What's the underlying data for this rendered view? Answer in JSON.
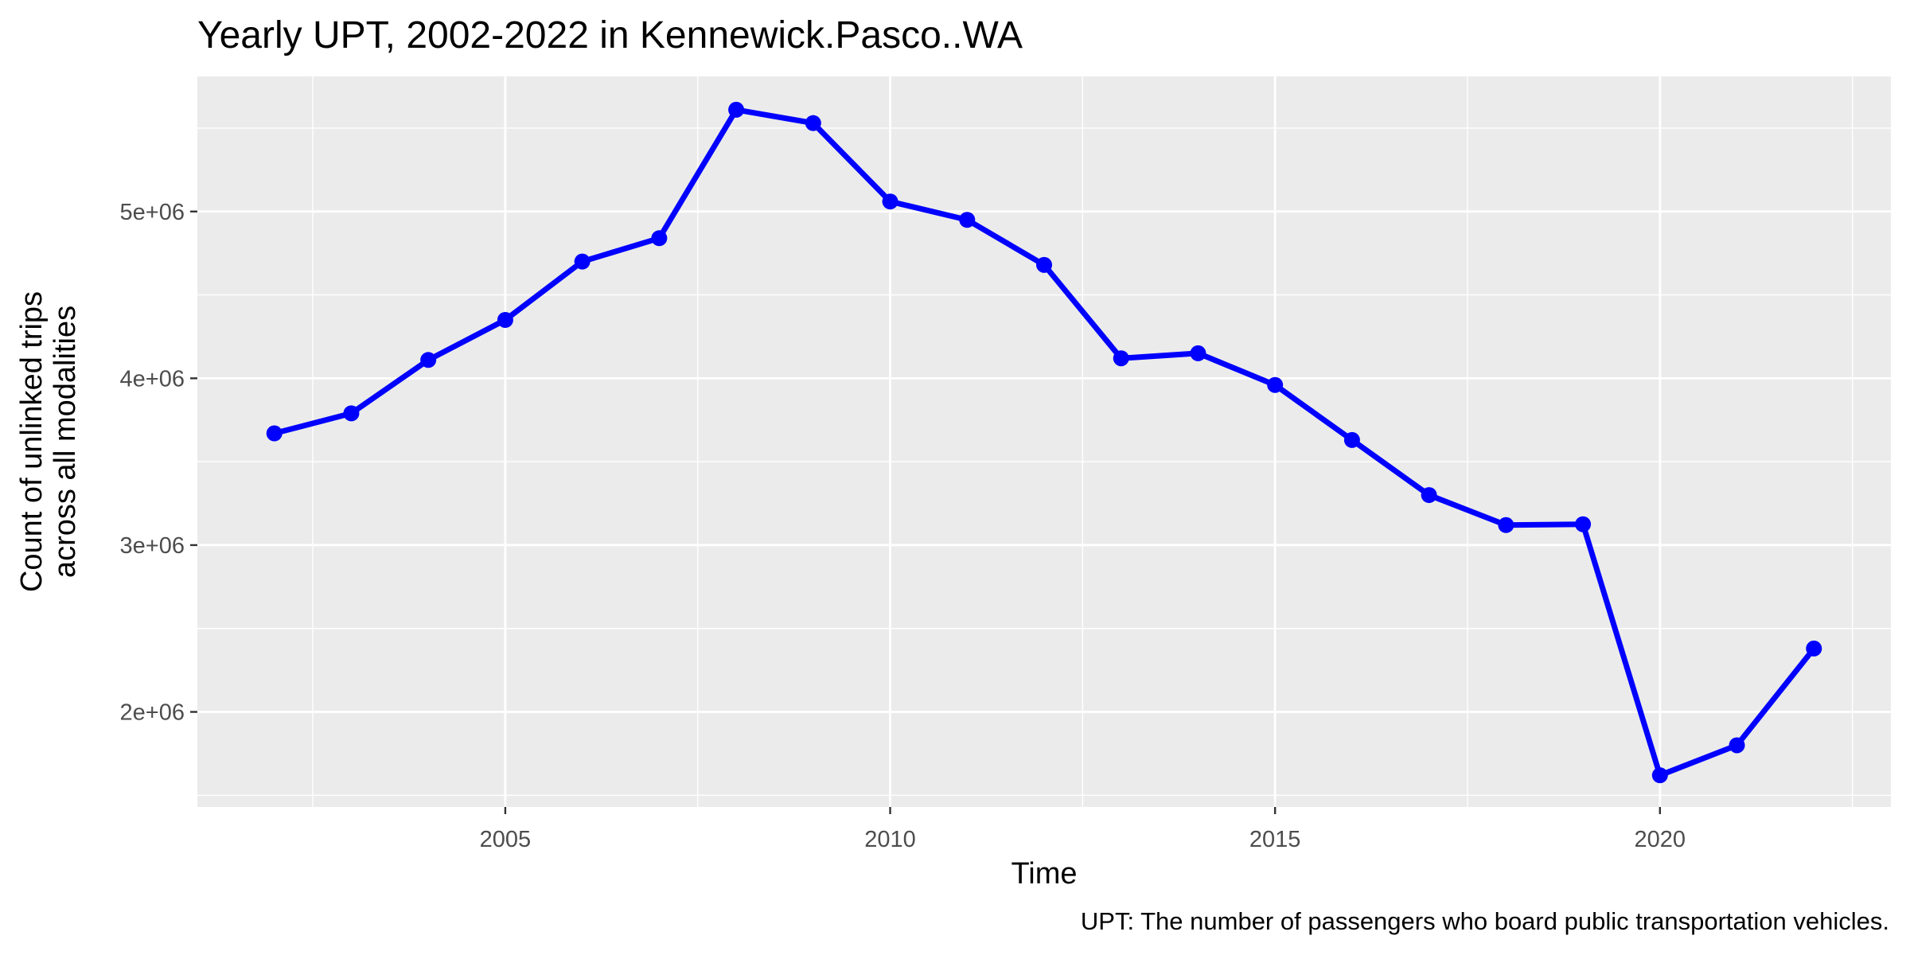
{
  "chart_data": {
    "type": "line",
    "title": "Yearly UPT, 2002-2022 in Kennewick.Pasco..WA",
    "xlabel": "Time",
    "ylabel_lines": [
      "Count of unlinked trips",
      "across all modalities"
    ],
    "caption": "UPT: The number of passengers who board public transportation vehicles.",
    "x": [
      2002,
      2003,
      2004,
      2005,
      2006,
      2007,
      2008,
      2009,
      2010,
      2011,
      2012,
      2013,
      2014,
      2015,
      2016,
      2017,
      2018,
      2019,
      2020,
      2021,
      2022
    ],
    "series": [
      {
        "values": [
          3670000,
          3790000,
          4110000,
          4350000,
          4700000,
          4840000,
          5610000,
          5530000,
          5060000,
          4950000,
          4680000,
          4120000,
          4150000,
          3960000,
          3630000,
          3300000,
          3120000,
          3125000,
          1620000,
          1800000,
          2380000
        ],
        "color": "#0000ff"
      }
    ],
    "xlim": [
      2001,
      2023
    ],
    "ylim": [
      1430000,
      5810000
    ],
    "x_ticks": [
      2005,
      2010,
      2015,
      2020
    ],
    "x_tick_labels": [
      "2005",
      "2010",
      "2015",
      "2020"
    ],
    "y_ticks": [
      2000000,
      3000000,
      4000000,
      5000000
    ],
    "y_tick_labels": [
      "2e+06",
      "3e+06",
      "4e+06",
      "5e+06"
    ],
    "panel_background": "#ebebeb",
    "grid_color": "#ffffff",
    "grid": true,
    "legend": "none"
  }
}
